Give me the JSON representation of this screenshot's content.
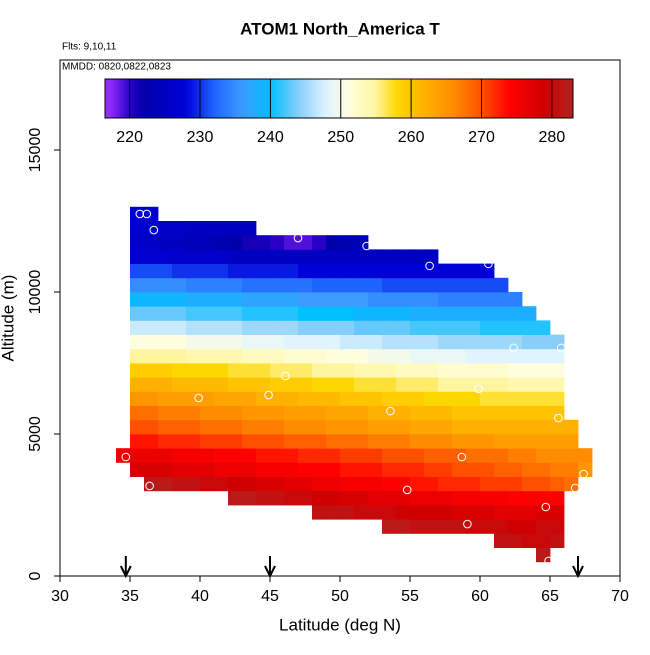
{
  "chart_data": {
    "type": "heatmap",
    "title": "ATOM1 North_America T",
    "notes": [
      "Flts: 9,10,11",
      "MMDD: 0820,0822,0823"
    ],
    "xlabel": "Latitude (deg N)",
    "ylabel": "Altitude (m)",
    "xlim": [
      30,
      70
    ],
    "xticks": [
      30,
      35,
      40,
      45,
      50,
      55,
      60,
      65,
      70
    ],
    "ylim": [
      0,
      18169
    ],
    "yticks": [
      0,
      5000,
      10000,
      15000
    ],
    "xbins": [
      34,
      35,
      36,
      37,
      38,
      39,
      40,
      41,
      42,
      43,
      44,
      45,
      46,
      47,
      48,
      49,
      50,
      51,
      52,
      53,
      54,
      55,
      56,
      57,
      58,
      59,
      60,
      61,
      62,
      63,
      64,
      65,
      66,
      67,
      68
    ],
    "ybins": [
      500,
      1000,
      1500,
      2000,
      2500,
      3000,
      3500,
      4000,
      4500,
      5000,
      5500,
      6000,
      6500,
      7000,
      7500,
      8000,
      8500,
      9000,
      9500,
      10000,
      10500,
      11000,
      11500,
      12000,
      12500,
      13000
    ],
    "z": [
      [
        null,
        null,
        null,
        null,
        null,
        null,
        null,
        null,
        null,
        null,
        null,
        null,
        null,
        null,
        null,
        null,
        null,
        null,
        null,
        null,
        null,
        null,
        null,
        null,
        null,
        null,
        null,
        null,
        null,
        null,
        282,
        null,
        null,
        null
      ],
      [
        null,
        null,
        null,
        null,
        null,
        null,
        null,
        null,
        null,
        null,
        null,
        null,
        null,
        null,
        null,
        null,
        null,
        null,
        null,
        null,
        null,
        null,
        null,
        null,
        null,
        null,
        null,
        281,
        281,
        280,
        280,
        281,
        null,
        null
      ],
      [
        null,
        null,
        null,
        null,
        null,
        null,
        null,
        null,
        null,
        null,
        null,
        null,
        null,
        null,
        null,
        null,
        null,
        null,
        null,
        282,
        282,
        281,
        281,
        281,
        281,
        280,
        280,
        280,
        279,
        279,
        280,
        280,
        null,
        null
      ],
      [
        null,
        null,
        null,
        null,
        null,
        null,
        null,
        null,
        null,
        null,
        null,
        null,
        null,
        null,
        281,
        281,
        281,
        280,
        280,
        280,
        279,
        279,
        279,
        279,
        278,
        278,
        278,
        277,
        277,
        277,
        278,
        278,
        null,
        null
      ],
      [
        null,
        null,
        null,
        null,
        null,
        null,
        null,
        null,
        282,
        282,
        281,
        281,
        280,
        280,
        279,
        279,
        278,
        278,
        277,
        277,
        277,
        276,
        276,
        276,
        275,
        275,
        275,
        275,
        274,
        274,
        274,
        274,
        null,
        null
      ],
      [
        null,
        null,
        282,
        282,
        281,
        281,
        280,
        280,
        279,
        279,
        278,
        278,
        277,
        277,
        276,
        276,
        275,
        275,
        275,
        274,
        274,
        273,
        273,
        272,
        272,
        272,
        271,
        271,
        271,
        270,
        270,
        269,
        268,
        null
      ],
      [
        null,
        278,
        278,
        278,
        277,
        277,
        277,
        276,
        276,
        276,
        275,
        275,
        275,
        274,
        274,
        274,
        273,
        273,
        273,
        272,
        272,
        272,
        271,
        271,
        270,
        270,
        270,
        269,
        269,
        268,
        268,
        267,
        267,
        265
      ],
      [
        276,
        276,
        276,
        276,
        275,
        275,
        275,
        274,
        274,
        274,
        273,
        273,
        273,
        272,
        272,
        272,
        271,
        271,
        271,
        270,
        270,
        270,
        269,
        269,
        269,
        268,
        268,
        268,
        267,
        267,
        266,
        266,
        266,
        266
      ],
      [
        null,
        273,
        273,
        272,
        272,
        272,
        271,
        271,
        271,
        270,
        270,
        270,
        269,
        269,
        269,
        268,
        268,
        268,
        267,
        267,
        267,
        266,
        266,
        266,
        265,
        265,
        265,
        264,
        264,
        264,
        264,
        264,
        264,
        null
      ],
      [
        null,
        270,
        270,
        269,
        269,
        269,
        268,
        268,
        268,
        267,
        267,
        267,
        266,
        266,
        266,
        265,
        265,
        265,
        264,
        264,
        264,
        263,
        263,
        263,
        262,
        262,
        262,
        262,
        262,
        262,
        262,
        262,
        262,
        null
      ],
      [
        null,
        268,
        268,
        267,
        267,
        267,
        266,
        266,
        266,
        265,
        265,
        265,
        264,
        264,
        264,
        263,
        263,
        263,
        262,
        262,
        262,
        261,
        261,
        261,
        260,
        260,
        260,
        260,
        260,
        260,
        260,
        260,
        null,
        null
      ],
      [
        null,
        265,
        265,
        264,
        264,
        264,
        264,
        263,
        263,
        263,
        262,
        262,
        262,
        261,
        261,
        261,
        260,
        260,
        260,
        259,
        259,
        259,
        258,
        258,
        258,
        258,
        257,
        257,
        257,
        257,
        257,
        257,
        null,
        null
      ],
      [
        null,
        262,
        262,
        262,
        261,
        261,
        261,
        261,
        260,
        260,
        260,
        259,
        259,
        259,
        258,
        258,
        258,
        257,
        257,
        257,
        256,
        256,
        256,
        255,
        255,
        255,
        255,
        255,
        254,
        254,
        254,
        254,
        null,
        null
      ],
      [
        null,
        259,
        259,
        259,
        258,
        258,
        258,
        258,
        257,
        257,
        257,
        256,
        256,
        256,
        255,
        255,
        255,
        254,
        254,
        254,
        253,
        253,
        253,
        252,
        252,
        252,
        252,
        252,
        251,
        251,
        251,
        251,
        null,
        null
      ],
      [
        null,
        255,
        255,
        255,
        255,
        254,
        254,
        254,
        254,
        253,
        253,
        253,
        252,
        252,
        252,
        251,
        251,
        251,
        250,
        250,
        250,
        249,
        249,
        249,
        249,
        248,
        248,
        248,
        248,
        248,
        248,
        248,
        null,
        null
      ],
      [
        null,
        251,
        251,
        251,
        251,
        250,
        250,
        250,
        250,
        249,
        249,
        249,
        248,
        248,
        248,
        248,
        247,
        247,
        247,
        246,
        246,
        246,
        246,
        245,
        245,
        245,
        245,
        245,
        245,
        244,
        244,
        244,
        null,
        null
      ],
      [
        null,
        247,
        247,
        247,
        247,
        246,
        246,
        246,
        246,
        245,
        245,
        245,
        245,
        244,
        244,
        244,
        244,
        243,
        243,
        243,
        243,
        242,
        242,
        242,
        242,
        242,
        241,
        241,
        241,
        241,
        241,
        null,
        null,
        null
      ],
      [
        null,
        243,
        243,
        243,
        243,
        242,
        242,
        242,
        242,
        241,
        241,
        241,
        241,
        240,
        240,
        240,
        240,
        239,
        239,
        239,
        239,
        238,
        238,
        238,
        238,
        238,
        238,
        238,
        238,
        238,
        null,
        null,
        null,
        null
      ],
      [
        null,
        239,
        239,
        239,
        239,
        238,
        238,
        238,
        238,
        237,
        237,
        237,
        237,
        236,
        236,
        236,
        236,
        236,
        235,
        235,
        235,
        235,
        235,
        234,
        234,
        234,
        234,
        234,
        234,
        null,
        null,
        null,
        null,
        null
      ],
      [
        null,
        235,
        235,
        235,
        235,
        234,
        234,
        234,
        234,
        233,
        233,
        233,
        233,
        233,
        232,
        232,
        232,
        232,
        232,
        231,
        231,
        231,
        231,
        231,
        231,
        231,
        231,
        231,
        null,
        null,
        null,
        null,
        null,
        null
      ],
      [
        null,
        231,
        231,
        231,
        230,
        230,
        230,
        230,
        229,
        229,
        229,
        229,
        229,
        228,
        228,
        228,
        228,
        228,
        228,
        228,
        228,
        228,
        228,
        228,
        228,
        228,
        228,
        null,
        null,
        null,
        null,
        null,
        null,
        null
      ],
      [
        null,
        227,
        227,
        227,
        226,
        226,
        226,
        226,
        225,
        225,
        225,
        225,
        225,
        225,
        225,
        225,
        225,
        225,
        225,
        225,
        225,
        225,
        225,
        null,
        null,
        null,
        null,
        null,
        null,
        null,
        null,
        null,
        null,
        null
      ],
      [
        null,
        226,
        226,
        225,
        225,
        224,
        224,
        223,
        222,
        221,
        221,
        220,
        219,
        219,
        220,
        222,
        223,
        224,
        null,
        null,
        null,
        null,
        null,
        null,
        null,
        null,
        null,
        null,
        null,
        null,
        null,
        null,
        null,
        null
      ],
      [
        null,
        227,
        227,
        226,
        226,
        225,
        225,
        225,
        225,
        225,
        null,
        null,
        null,
        null,
        null,
        null,
        null,
        null,
        null,
        null,
        null,
        null,
        null,
        null,
        null,
        null,
        null,
        null,
        null,
        null,
        null,
        null,
        null,
        null
      ],
      [
        null,
        227,
        227,
        null,
        null,
        null,
        null,
        null,
        null,
        null,
        null,
        null,
        null,
        null,
        null,
        null,
        null,
        null,
        null,
        null,
        null,
        null,
        null,
        null,
        null,
        null,
        null,
        null,
        null,
        null,
        null,
        null,
        null,
        null
      ]
    ],
    "colorbar": {
      "lim": [
        216.5,
        283
      ],
      "ticks": [
        220,
        230,
        240,
        250,
        260,
        270,
        280
      ]
    },
    "colormap": [
      [
        217,
        "#9b30ff"
      ],
      [
        220,
        "#2a00c8"
      ],
      [
        222,
        "#0000a8"
      ],
      [
        228,
        "#0000d8"
      ],
      [
        232,
        "#1e64ff"
      ],
      [
        236,
        "#3c9cff"
      ],
      [
        240,
        "#00bfff"
      ],
      [
        244,
        "#87cefa"
      ],
      [
        248,
        "#e0f4ff"
      ],
      [
        251,
        "#ffffe0"
      ],
      [
        255,
        "#fff5a0"
      ],
      [
        258,
        "#ffd700"
      ],
      [
        262,
        "#ffb000"
      ],
      [
        266,
        "#ff8c00"
      ],
      [
        270,
        "#ff5000"
      ],
      [
        274,
        "#ff0000"
      ],
      [
        279,
        "#d00000"
      ],
      [
        283,
        "#b22222"
      ]
    ],
    "points": {
      "x": [
        34.7,
        35.7,
        36.2,
        36.7,
        36.4,
        39.9,
        44.9,
        46.1,
        47.0,
        51.9,
        53.6,
        54.8,
        56.4,
        58.7,
        59.1,
        59.9,
        60.6,
        62.4,
        64.7,
        64.9,
        65.6,
        65.8,
        66.8,
        67.4
      ],
      "y": [
        4190,
        12750,
        12750,
        12180,
        3170,
        6270,
        6370,
        7040,
        11900,
        11620,
        5810,
        3030,
        10920,
        4190,
        1830,
        6590,
        10990,
        8030,
        2430,
        530,
        5560,
        8030,
        3100,
        3590
      ]
    },
    "arrows": [
      34.7,
      45,
      67
    ]
  }
}
